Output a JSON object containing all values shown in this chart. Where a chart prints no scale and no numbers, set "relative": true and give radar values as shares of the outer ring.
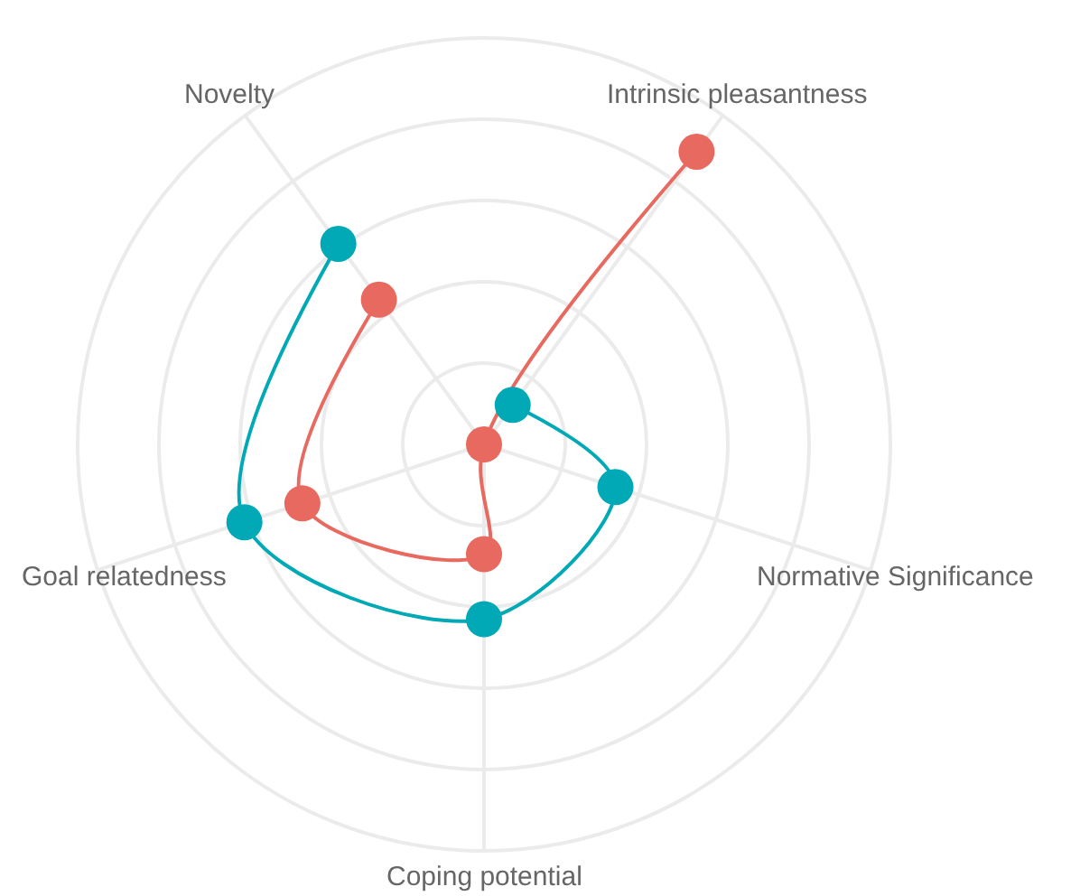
{
  "chart_data": {
    "type": "radar",
    "relative": true,
    "grid": true,
    "marker": "circle",
    "line_style": "solid",
    "categories": [
      "Intrinsic pleasantness",
      "Normative Significance",
      "Coping potential",
      "Goal relatedness",
      "Novelty"
    ],
    "series": [
      {
        "color": "#e8695f",
        "values": [
          0.89,
          0.0,
          0.27,
          0.47,
          0.44
        ]
      },
      {
        "color": "#00a9b5",
        "values": [
          0.12,
          0.34,
          0.43,
          0.62,
          0.61
        ]
      }
    ]
  }
}
